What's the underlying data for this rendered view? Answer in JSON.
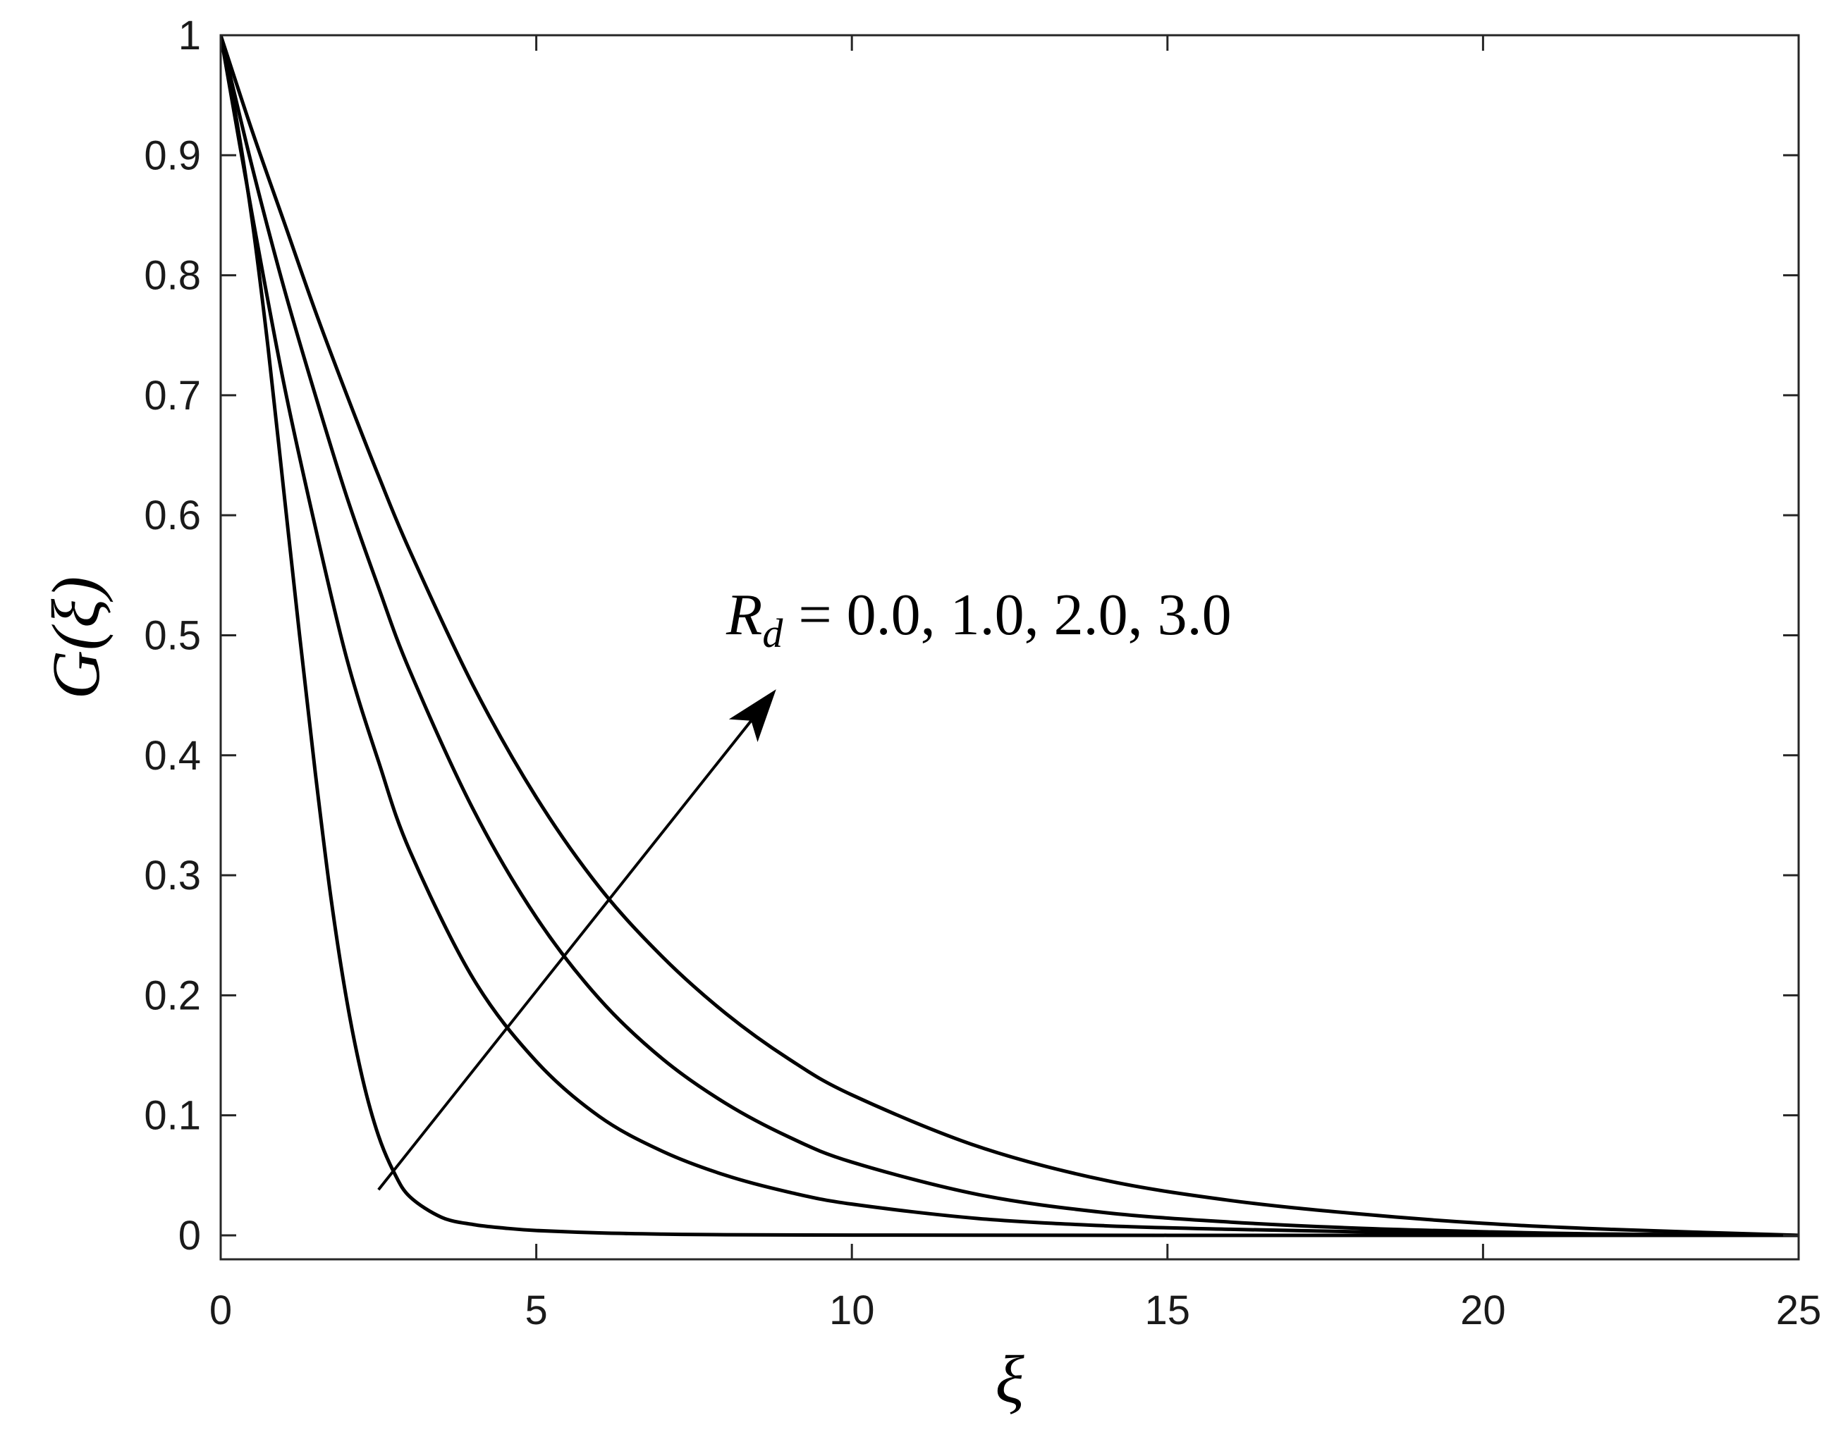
{
  "chart_data": {
    "type": "line",
    "title": "",
    "xlabel": "ξ",
    "ylabel": "G(ξ)",
    "xlim": [
      0,
      25
    ],
    "ylim": [
      -0.02,
      1
    ],
    "xticks": [
      0,
      5,
      10,
      15,
      20,
      25
    ],
    "xtick_labels": [
      "0",
      "5",
      "10",
      "15",
      "20",
      "25"
    ],
    "yticks": [
      0,
      0.1,
      0.2,
      0.3,
      0.4,
      0.5,
      0.6,
      0.7,
      0.8,
      0.9,
      1
    ],
    "ytick_labels": [
      "0",
      "0.1",
      "0.2",
      "0.3",
      "0.4",
      "0.5",
      "0.6",
      "0.7",
      "0.8",
      "0.9",
      "1"
    ],
    "grid": false,
    "legend": "none",
    "line_color": "#000000",
    "annotation": {
      "text_lhs": "R",
      "text_sub": "d",
      "text_rhs": "= 0.0, 1.0, 2.0, 3.0",
      "arrow_from": [
        2.5,
        0.038
      ],
      "arrow_to": [
        8.8,
        0.455
      ],
      "label_position": "upper-center"
    },
    "series": [
      {
        "x": [
          0,
          0.25,
          0.5,
          0.75,
          1,
          1.25,
          1.5,
          1.75,
          2,
          2.25,
          2.5,
          2.75,
          3,
          3.5,
          4,
          4.5,
          5,
          6,
          7,
          8,
          10,
          12,
          15,
          20,
          25
        ],
        "y": [
          1,
          0.93,
          0.845,
          0.74,
          0.62,
          0.5,
          0.385,
          0.28,
          0.195,
          0.13,
          0.083,
          0.052,
          0.032,
          0.015,
          0.009,
          0.006,
          0.004,
          0.002,
          0.001,
          0.0005,
          0.0002,
          0.0001,
          0,
          0,
          0
        ]
      },
      {
        "x": [
          0,
          0.5,
          1,
          1.5,
          2,
          2.5,
          3,
          4,
          5,
          6,
          7,
          8,
          9,
          10,
          12,
          14,
          16,
          18,
          20,
          22,
          25
        ],
        "y": [
          1,
          0.85,
          0.71,
          0.59,
          0.48,
          0.395,
          0.32,
          0.214,
          0.145,
          0.099,
          0.07,
          0.05,
          0.036,
          0.026,
          0.014,
          0.008,
          0.005,
          0.003,
          0.002,
          0.001,
          0
        ]
      },
      {
        "x": [
          0,
          0.5,
          1,
          1.5,
          2,
          2.5,
          3,
          4,
          5,
          6,
          7,
          8,
          9,
          10,
          12,
          14,
          16,
          18,
          20,
          22,
          25
        ],
        "y": [
          1,
          0.89,
          0.79,
          0.7,
          0.615,
          0.54,
          0.47,
          0.355,
          0.265,
          0.197,
          0.147,
          0.11,
          0.082,
          0.061,
          0.034,
          0.019,
          0.011,
          0.006,
          0.003,
          0.001,
          0
        ]
      },
      {
        "x": [
          0,
          0.5,
          1,
          1.5,
          2,
          2.5,
          3,
          4,
          5,
          6,
          7,
          8,
          9,
          10,
          12,
          14,
          16,
          18,
          20,
          22,
          25
        ],
        "y": [
          1,
          0.92,
          0.845,
          0.77,
          0.7,
          0.633,
          0.57,
          0.458,
          0.365,
          0.29,
          0.232,
          0.185,
          0.147,
          0.117,
          0.074,
          0.046,
          0.029,
          0.018,
          0.01,
          0.005,
          0
        ]
      }
    ]
  }
}
